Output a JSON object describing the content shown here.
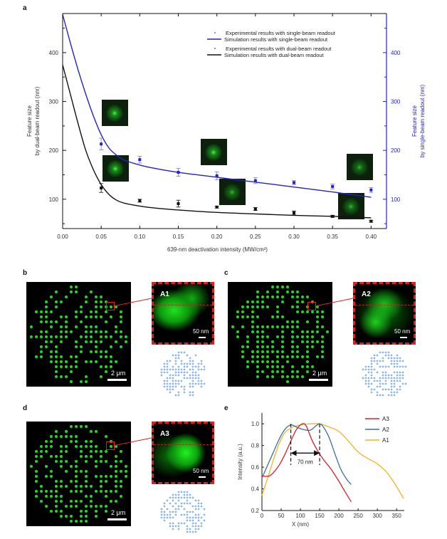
{
  "panels": {
    "a": "a",
    "b": "b",
    "c": "c",
    "d": "d",
    "e": "e"
  },
  "chart_data": [
    {
      "id": "a",
      "type": "scatter",
      "title": "",
      "xlabel": "639-nm deactivation intensity (MW/cm²)",
      "ylabel_left": [
        "Feature size",
        "by dual-beam readout (nm)"
      ],
      "ylabel_right": [
        "Feature size",
        "by single-beam readout (nm)"
      ],
      "xlim": [
        0,
        0.42
      ],
      "ylim": [
        40,
        480
      ],
      "xticks": [
        "0.00",
        "0.05",
        "0.10",
        "0.15",
        "0.20",
        "0.25",
        "0.30",
        "0.35",
        "0.40"
      ],
      "yticks_left": [
        "100",
        "200",
        "300",
        "400"
      ],
      "yticks_right": [
        "100",
        "200",
        "300",
        "400"
      ],
      "legend_position": "top-right",
      "legend": [
        "Experimental results with single-beam readout",
        "Simulation results with single-beam readout",
        "Experimental results with dual-beam readout",
        "Simulation results with dual-beam readout"
      ],
      "colors": {
        "single": "#2222cc",
        "dual": "#111111",
        "single_err": "#7777dd"
      },
      "series": [
        {
          "name": "Experimental results with single-beam readout",
          "kind": "points",
          "x": [
            0.05,
            0.1,
            0.15,
            0.2,
            0.25,
            0.3,
            0.35,
            0.4
          ],
          "y": [
            213,
            181,
            155,
            148,
            138,
            134,
            126,
            119
          ],
          "err": [
            12,
            7,
            8,
            8,
            6,
            4,
            5,
            5
          ]
        },
        {
          "name": "Experimental results with dual-beam readout",
          "kind": "points",
          "x": [
            0.05,
            0.1,
            0.15,
            0.2,
            0.25,
            0.3,
            0.35,
            0.4
          ],
          "y": [
            123,
            97,
            91,
            84,
            80,
            72,
            65,
            55
          ],
          "err": [
            9,
            3,
            7,
            2,
            3,
            4,
            2,
            2
          ]
        },
        {
          "name": "Simulation results with single-beam readout",
          "kind": "line",
          "x": [
            0,
            0.01,
            0.02,
            0.03,
            0.04,
            0.05,
            0.06,
            0.07,
            0.08,
            0.1,
            0.12,
            0.15,
            0.2,
            0.25,
            0.3,
            0.35,
            0.4
          ],
          "y": [
            478,
            420,
            365,
            315,
            270,
            232,
            205,
            190,
            180,
            170,
            163,
            155,
            145,
            135,
            125,
            115,
            104
          ]
        },
        {
          "name": "Simulation results with dual-beam readout",
          "kind": "line",
          "x": [
            0,
            0.01,
            0.02,
            0.03,
            0.04,
            0.05,
            0.06,
            0.07,
            0.08,
            0.1,
            0.12,
            0.15,
            0.2,
            0.25,
            0.3,
            0.35,
            0.4
          ],
          "y": [
            375,
            315,
            255,
            200,
            160,
            130,
            110,
            98,
            92,
            86,
            82,
            78,
            73,
            70,
            67,
            65,
            62
          ]
        }
      ],
      "insets_at_x": [
        0.05,
        0.05,
        0.2,
        0.22,
        0.35,
        0.4
      ]
    },
    {
      "id": "e",
      "type": "line",
      "title": "",
      "xlabel": "X (nm)",
      "ylabel": "Intensity (a.u.)",
      "xlim": [
        0,
        370
      ],
      "ylim": [
        0.2,
        1.1
      ],
      "xticks": [
        "0",
        "50",
        "100",
        "150",
        "200",
        "250",
        "300",
        "350"
      ],
      "yticks": [
        "0.2",
        "0.4",
        "0.6",
        "0.8",
        "1.0"
      ],
      "legend_position": "top-right",
      "annotation": "70 nm",
      "annotation_range": [
        75,
        150
      ],
      "series": [
        {
          "name": "A3",
          "color": "#d9202a",
          "x": [
            0,
            10,
            20,
            30,
            45,
            60,
            75,
            90,
            105,
            115,
            130,
            145,
            160,
            180,
            200,
            215,
            232
          ],
          "y": [
            0.52,
            0.515,
            0.52,
            0.55,
            0.62,
            0.72,
            0.84,
            0.95,
            1.0,
            0.98,
            0.85,
            0.75,
            0.67,
            0.58,
            0.47,
            0.38,
            0.28
          ]
        },
        {
          "name": "A2",
          "color": "#3a6ea5",
          "x": [
            0,
            15,
            30,
            45,
            60,
            75,
            90,
            105,
            125,
            140,
            150,
            160,
            175,
            190,
            205,
            220,
            232
          ],
          "y": [
            0.5,
            0.62,
            0.74,
            0.86,
            0.95,
            0.99,
            0.97,
            0.95,
            0.94,
            0.98,
            1.0,
            0.97,
            0.87,
            0.72,
            0.58,
            0.49,
            0.44
          ]
        },
        {
          "name": "A1",
          "color": "#f0b428",
          "x": [
            0,
            15,
            30,
            45,
            60,
            80,
            100,
            125,
            150,
            175,
            200,
            225,
            250,
            275,
            300,
            325,
            350,
            368
          ],
          "y": [
            0.34,
            0.5,
            0.67,
            0.82,
            0.92,
            0.97,
            0.99,
            1.0,
            1.0,
            0.97,
            0.93,
            0.84,
            0.74,
            0.68,
            0.63,
            0.55,
            0.42,
            0.31
          ]
        }
      ]
    }
  ],
  "micrographs": [
    {
      "panel": "b",
      "scale_label": "2 μm",
      "zoom_label": "A1",
      "zoom_scale_label": "50 nm"
    },
    {
      "panel": "c",
      "scale_label": "2 μm",
      "zoom_label": "A2",
      "zoom_scale_label": "50 nm"
    },
    {
      "panel": "d",
      "scale_label": "2 μm",
      "zoom_label": "A3",
      "zoom_scale_label": "50 nm"
    }
  ]
}
